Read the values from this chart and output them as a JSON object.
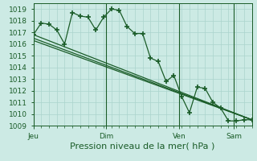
{
  "title": "Pression niveau de la mer( hPa )",
  "bg_color": "#cceae4",
  "grid_color": "#aad4cc",
  "line_color": "#1a5c28",
  "ylim": [
    1009,
    1019.5
  ],
  "yticks": [
    1009,
    1010,
    1011,
    1012,
    1013,
    1014,
    1015,
    1016,
    1017,
    1018,
    1019
  ],
  "xlim": [
    0,
    168
  ],
  "day_labels": [
    "Jeu",
    "Dim",
    "Ven",
    "Sam"
  ],
  "day_positions": [
    0,
    56,
    112,
    154
  ],
  "series1_x": [
    0,
    6,
    12,
    18,
    24,
    30,
    36,
    42,
    48,
    54,
    60,
    66,
    72,
    78,
    84,
    90,
    96,
    102,
    108,
    114,
    120,
    126,
    132,
    138,
    144,
    150,
    156,
    162,
    168
  ],
  "series1_y": [
    1016.8,
    1017.8,
    1017.7,
    1017.2,
    1016.0,
    1018.7,
    1018.4,
    1018.3,
    1017.2,
    1018.3,
    1019.0,
    1018.9,
    1017.5,
    1016.9,
    1016.9,
    1014.8,
    1014.5,
    1012.8,
    1013.3,
    1011.5,
    1010.1,
    1012.3,
    1012.2,
    1011.0,
    1010.5,
    1009.4,
    1009.4,
    1009.5,
    1009.5
  ],
  "series2_x": [
    0,
    168
  ],
  "series2_y": [
    1016.8,
    1009.5
  ],
  "series3_x": [
    0,
    168
  ],
  "series3_y": [
    1016.5,
    1009.5
  ],
  "series4_x": [
    0,
    168
  ],
  "series4_y": [
    1016.3,
    1009.5
  ],
  "tick_fontsize": 6.5,
  "xlabel_fontsize": 8
}
